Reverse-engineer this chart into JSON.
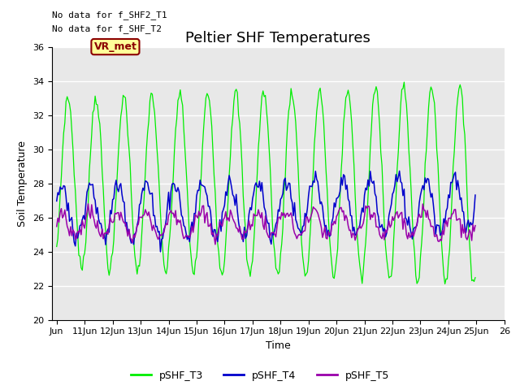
{
  "title": "Peltier SHF Temperatures",
  "xlabel": "Time",
  "ylabel": "Soil Temperature",
  "ylim": [
    20,
    36
  ],
  "bg_color": "#e8e8e8",
  "grid_color": "white",
  "line_colors": {
    "T3": "#00ee00",
    "T4": "#0000cc",
    "T5": "#9900aa"
  },
  "legend_labels": [
    "pSHF_T3",
    "pSHF_T4",
    "pSHF_T5"
  ],
  "xtick_labels": [
    "Jun",
    "11Jun",
    "12Jun",
    "13Jun",
    "14Jun",
    "15Jun",
    "16Jun",
    "17Jun",
    "18Jun",
    "19Jun",
    "20Jun",
    "21Jun",
    "22Jun",
    "23Jun",
    "24Jun",
    "25Jun",
    "26"
  ],
  "annotation1": "No data for f_SHF2_T1",
  "annotation2": "No data for f_SHF_T2",
  "vr_label": "VR_met",
  "vr_bg": "#ffff99",
  "vr_border": "#8b0000",
  "vr_text_color": "#8b0000",
  "title_fontsize": 13,
  "axis_fontsize": 9,
  "tick_fontsize": 8,
  "legend_fontsize": 9,
  "annot_fontsize": 8
}
